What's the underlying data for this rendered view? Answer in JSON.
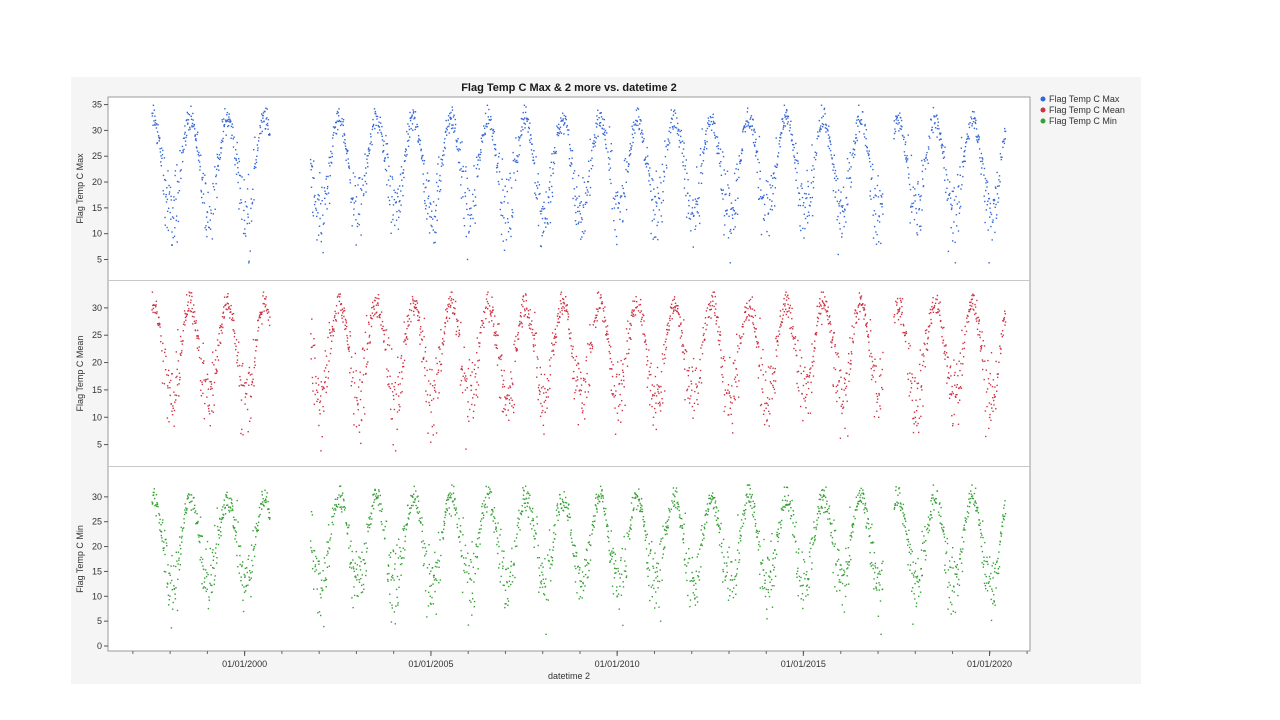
{
  "chart_data": {
    "type": "scatter",
    "title": "Flag Temp C Max & 2 more vs. datetime 2",
    "xlabel": "datetime 2",
    "x_tick_labels": [
      "01/01/2000",
      "01/01/2005",
      "01/01/2010",
      "01/01/2015",
      "01/01/2020"
    ],
    "x_tick_dates": [
      "2000-01-01",
      "2005-01-01",
      "2010-01-01",
      "2015-01-01",
      "2020-01-01"
    ],
    "x_range": [
      "1996-05-01",
      "2021-02-01"
    ],
    "x_minor_ticks_per_major": 4,
    "data_extent": [
      "1997-07-01",
      "2020-06-01"
    ],
    "data_gaps": [
      [
        "2000-09-01",
        "2001-10-01"
      ],
      [
        "2017-02-15",
        "2017-06-01"
      ]
    ],
    "panels": [
      {
        "name": "Flag Temp C Max",
        "ylabel": "Flag Temp C Max",
        "ylim": [
          2,
          35.5
        ],
        "yticks": [
          5,
          10,
          15,
          20,
          25,
          30,
          35
        ],
        "color": "#3466d4",
        "approx_mean": 23.4,
        "approx_amplitude": 9,
        "approx_min": 4.5,
        "approx_max": 35
      },
      {
        "name": "Flag Temp C Mean",
        "ylabel": "Flag Temp C Mean",
        "ylim": [
          2,
          34
        ],
        "yticks": [
          5,
          10,
          15,
          20,
          25,
          30
        ],
        "color": "#cc3343",
        "approx_mean": 22.5,
        "approx_amplitude": 8.5,
        "approx_min": 4,
        "approx_max": 33
      },
      {
        "name": "Flag Temp C Min",
        "ylabel": "Flag Temp C Min",
        "ylim": [
          0,
          35
        ],
        "yticks": [
          0,
          5,
          10,
          15,
          20,
          25,
          30
        ],
        "color": "#35a033",
        "approx_mean": 21.5,
        "approx_amplitude": 8.5,
        "approx_min": 2.5,
        "approx_max": 32.5
      }
    ],
    "legend": {
      "position": "top-right",
      "entries": [
        "Flag Temp C Max",
        "Flag Temp C Mean",
        "Flag Temp C Min"
      ]
    },
    "grid": false
  }
}
